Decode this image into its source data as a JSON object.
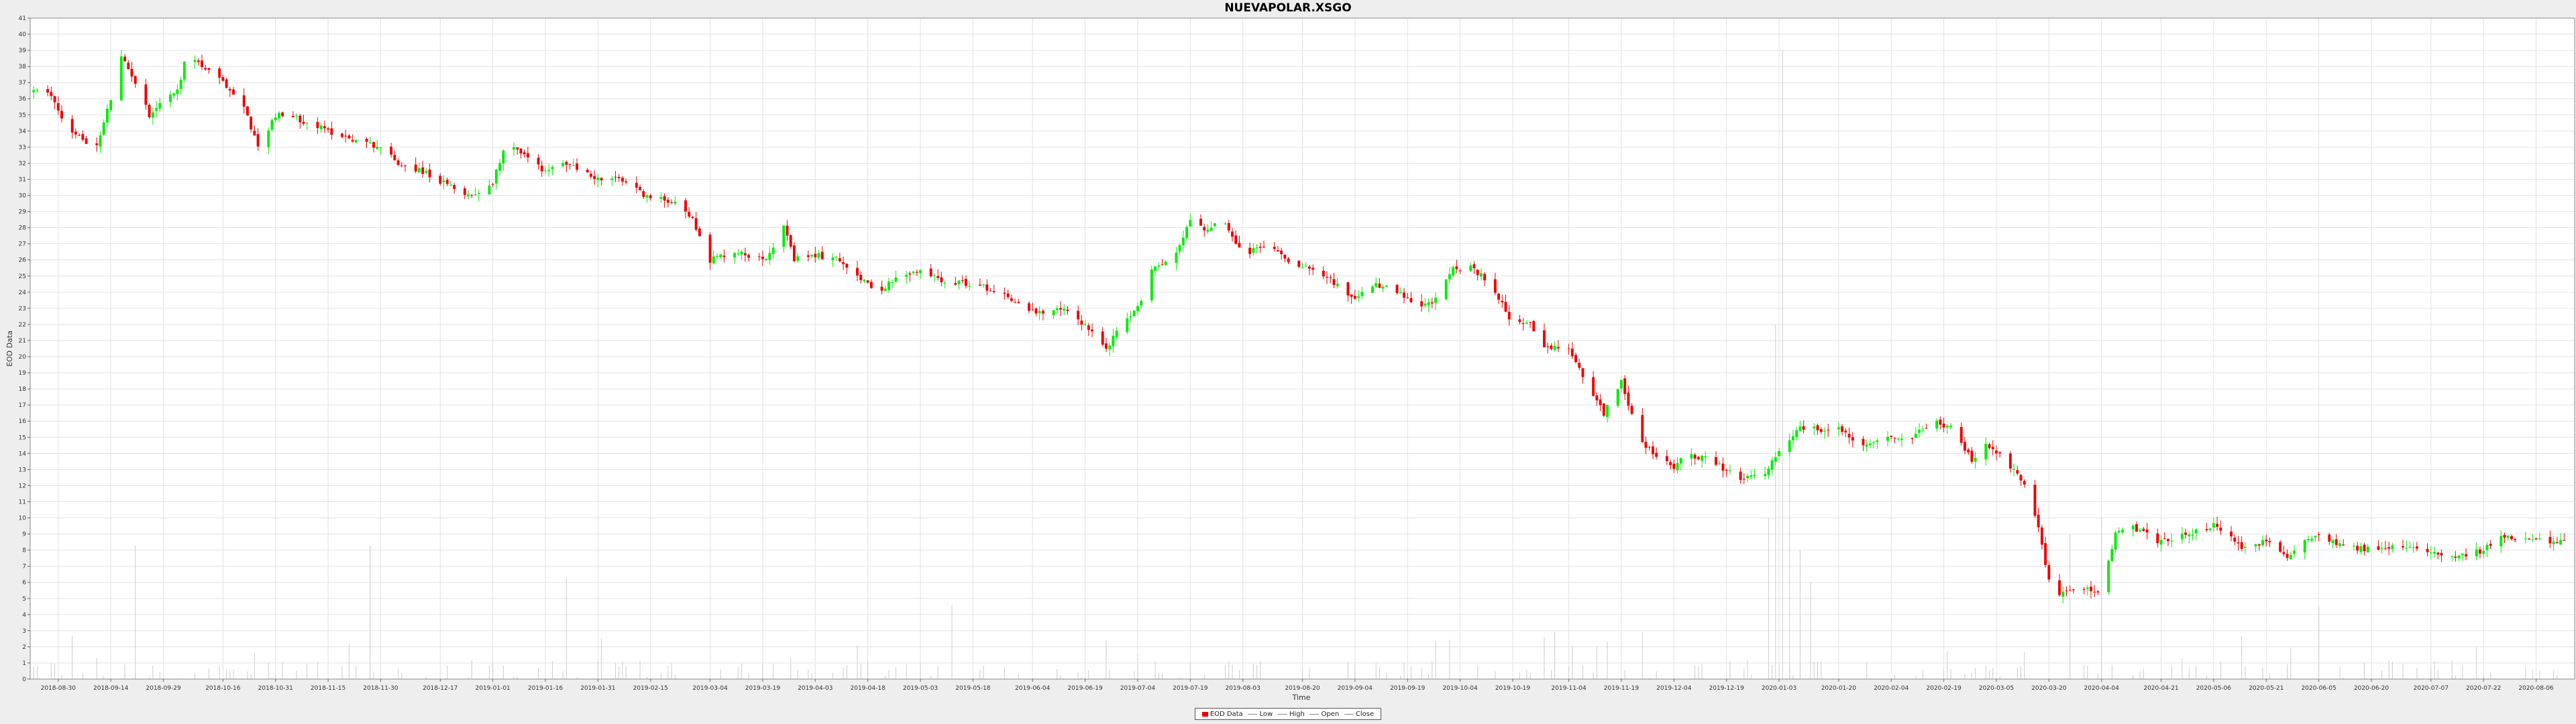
{
  "chart_data": {
    "type": "candlestick",
    "title": "NUEVAPOLAR.XSGO",
    "xlabel": "Time",
    "ylabel": "EOD Data",
    "ylim": [
      0,
      41
    ],
    "yticks": [
      0,
      1,
      2,
      3,
      4,
      5,
      6,
      7,
      8,
      9,
      10,
      11,
      12,
      13,
      14,
      15,
      16,
      17,
      18,
      19,
      20,
      21,
      22,
      23,
      24,
      25,
      26,
      27,
      28,
      29,
      30,
      31,
      32,
      33,
      34,
      35,
      36,
      37,
      38,
      39,
      40,
      41
    ],
    "xlim": [
      "2018-08-22",
      "2020-08-17"
    ],
    "xticks": [
      "2018-08-30",
      "2018-09-14",
      "2018-09-29",
      "2018-10-16",
      "2018-10-31",
      "2018-11-15",
      "2018-11-30",
      "2018-12-17",
      "2019-01-01",
      "2019-01-16",
      "2019-01-31",
      "2019-02-15",
      "2019-03-04",
      "2019-03-19",
      "2019-04-03",
      "2019-04-18",
      "2019-05-03",
      "2019-05-18",
      "2019-06-04",
      "2019-06-19",
      "2019-07-04",
      "2019-07-19",
      "2019-08-03",
      "2019-08-20",
      "2019-09-04",
      "2019-09-19",
      "2019-10-04",
      "2019-10-19",
      "2019-11-04",
      "2019-11-19",
      "2019-12-04",
      "2019-12-19",
      "2020-01-03",
      "2020-01-20",
      "2020-02-04",
      "2020-02-19",
      "2020-03-05",
      "2020-03-20",
      "2020-04-04",
      "2020-04-21",
      "2020-05-06",
      "2020-05-21",
      "2020-06-05",
      "2020-06-20",
      "2020-07-07",
      "2020-07-22",
      "2020-08-06"
    ],
    "close_path": [
      [
        "2018-08-23",
        36.5
      ],
      [
        "2018-08-28",
        36.2
      ],
      [
        "2018-09-02",
        34.0
      ],
      [
        "2018-09-06",
        33.5
      ],
      [
        "2018-09-10",
        33.0
      ],
      [
        "2018-09-14",
        36.0
      ],
      [
        "2018-09-17",
        38.5
      ],
      [
        "2018-09-20",
        37.5
      ],
      [
        "2018-09-25",
        35.0
      ],
      [
        "2018-09-29",
        36.0
      ],
      [
        "2018-10-03",
        36.5
      ],
      [
        "2018-10-06",
        39.0
      ],
      [
        "2018-10-10",
        38.0
      ],
      [
        "2018-10-16",
        37.0
      ],
      [
        "2018-10-22",
        35.5
      ],
      [
        "2018-10-26",
        33.0
      ],
      [
        "2018-10-31",
        35.0
      ],
      [
        "2018-11-06",
        34.8
      ],
      [
        "2018-11-15",
        34.0
      ],
      [
        "2018-11-22",
        33.5
      ],
      [
        "2018-11-30",
        33.0
      ],
      [
        "2018-12-05",
        32.0
      ],
      [
        "2018-12-12",
        31.5
      ],
      [
        "2018-12-20",
        30.5
      ],
      [
        "2018-12-26",
        30.0
      ],
      [
        "2019-01-01",
        30.8
      ],
      [
        "2019-01-05",
        33.5
      ],
      [
        "2019-01-10",
        32.5
      ],
      [
        "2019-01-16",
        31.5
      ],
      [
        "2019-01-22",
        32.0
      ],
      [
        "2019-01-31",
        31.0
      ],
      [
        "2019-02-06",
        31.0
      ],
      [
        "2019-02-10",
        30.5
      ],
      [
        "2019-02-15",
        29.8
      ],
      [
        "2019-02-22",
        29.7
      ],
      [
        "2019-02-27",
        28.5
      ],
      [
        "2019-03-04",
        26.0
      ],
      [
        "2019-03-10",
        26.5
      ],
      [
        "2019-03-15",
        26.3
      ],
      [
        "2019-03-20",
        26.2
      ],
      [
        "2019-03-25",
        28.0
      ],
      [
        "2019-03-28",
        26.0
      ],
      [
        "2019-04-03",
        26.3
      ],
      [
        "2019-04-10",
        26.0
      ],
      [
        "2019-04-14",
        25.3
      ],
      [
        "2019-04-20",
        24.0
      ],
      [
        "2019-04-26",
        24.8
      ],
      [
        "2019-05-03",
        25.3
      ],
      [
        "2019-05-10",
        24.7
      ],
      [
        "2019-05-18",
        24.5
      ],
      [
        "2019-05-26",
        24.0
      ],
      [
        "2019-06-02",
        23.0
      ],
      [
        "2019-06-08",
        22.5
      ],
      [
        "2019-06-12",
        23.0
      ],
      [
        "2019-06-19",
        22.0
      ],
      [
        "2019-06-25",
        20.5
      ],
      [
        "2019-06-28",
        21.5
      ],
      [
        "2019-07-04",
        23.0
      ],
      [
        "2019-07-08",
        25.5
      ],
      [
        "2019-07-14",
        26.0
      ],
      [
        "2019-07-19",
        28.5
      ],
      [
        "2019-07-24",
        27.8
      ],
      [
        "2019-07-28",
        28.5
      ],
      [
        "2019-08-03",
        26.3
      ],
      [
        "2019-08-10",
        27.0
      ],
      [
        "2019-08-17",
        25.8
      ],
      [
        "2019-08-24",
        25.5
      ],
      [
        "2019-09-04",
        23.5
      ],
      [
        "2019-09-10",
        24.5
      ],
      [
        "2019-09-16",
        24.0
      ],
      [
        "2019-09-22",
        23.0
      ],
      [
        "2019-09-27",
        23.5
      ],
      [
        "2019-10-02",
        25.5
      ],
      [
        "2019-10-07",
        25.5
      ],
      [
        "2019-10-13",
        24.5
      ],
      [
        "2019-10-19",
        22.0
      ],
      [
        "2019-10-24",
        22.0
      ],
      [
        "2019-10-28",
        20.5
      ],
      [
        "2019-11-04",
        20.5
      ],
      [
        "2019-11-09",
        18.5
      ],
      [
        "2019-11-14",
        16.5
      ],
      [
        "2019-11-19",
        18.5
      ],
      [
        "2019-11-24",
        15.0
      ],
      [
        "2019-11-30",
        13.5
      ],
      [
        "2019-12-04",
        13.2
      ],
      [
        "2019-12-08",
        14.0
      ],
      [
        "2019-12-15",
        13.5
      ],
      [
        "2019-12-22",
        12.5
      ],
      [
        "2019-12-29",
        12.5
      ],
      [
        "2020-01-03",
        14.0
      ],
      [
        "2020-01-08",
        15.5
      ],
      [
        "2020-01-14",
        15.5
      ],
      [
        "2020-01-20",
        15.5
      ],
      [
        "2020-01-26",
        14.5
      ],
      [
        "2020-02-01",
        15.0
      ],
      [
        "2020-02-10",
        15.0
      ],
      [
        "2020-02-16",
        16.0
      ],
      [
        "2020-02-22",
        15.5
      ],
      [
        "2020-02-27",
        13.5
      ],
      [
        "2020-03-02",
        14.5
      ],
      [
        "2020-03-08",
        13.5
      ],
      [
        "2020-03-13",
        12.0
      ],
      [
        "2020-03-17",
        9.5
      ],
      [
        "2020-03-21",
        5.0
      ],
      [
        "2020-03-26",
        5.5
      ],
      [
        "2020-04-01",
        5.6
      ],
      [
        "2020-04-04",
        5.5
      ],
      [
        "2020-04-08",
        9.0
      ],
      [
        "2020-04-12",
        9.5
      ],
      [
        "2020-04-21",
        8.5
      ],
      [
        "2020-04-28",
        9.0
      ],
      [
        "2020-05-06",
        9.5
      ],
      [
        "2020-05-14",
        8.2
      ],
      [
        "2020-05-21",
        8.5
      ],
      [
        "2020-05-27",
        7.5
      ],
      [
        "2020-06-02",
        8.8
      ],
      [
        "2020-06-05",
        9.0
      ],
      [
        "2020-06-12",
        8.3
      ],
      [
        "2020-06-20",
        8.0
      ],
      [
        "2020-06-28",
        8.2
      ],
      [
        "2020-07-07",
        8.0
      ],
      [
        "2020-07-14",
        7.6
      ],
      [
        "2020-07-22",
        8.0
      ],
      [
        "2020-07-27",
        8.8
      ],
      [
        "2020-08-01",
        8.7
      ],
      [
        "2020-08-06",
        8.6
      ],
      [
        "2020-08-14",
        8.5
      ]
    ],
    "volume_peaks": [
      [
        "2018-09-21",
        8.3
      ],
      [
        "2018-11-27",
        8.3
      ],
      [
        "2019-01-22",
        6.3
      ],
      [
        "2019-05-12",
        4.6
      ],
      [
        "2019-12-31",
        10.0
      ],
      [
        "2020-01-02",
        22.0
      ],
      [
        "2020-01-04",
        39.0
      ],
      [
        "2020-01-06",
        14.0
      ],
      [
        "2020-01-09",
        8.0
      ],
      [
        "2020-01-12",
        6.0
      ],
      [
        "2020-03-26",
        9.0
      ],
      [
        "2020-04-04",
        10.0
      ],
      [
        "2020-06-05",
        4.5
      ]
    ],
    "colors": {
      "up": "#00ee00",
      "down": "#ee0000",
      "grid": "#e2e2e2",
      "volume": "#cccccc",
      "plot_background": "#ffffff",
      "frame": "#888888"
    },
    "grid": true,
    "legend_position": "bottom-center",
    "legend": [
      {
        "label": "EOD Data",
        "kind": "swatch",
        "color": "#ee0000"
      },
      {
        "label": "Low",
        "kind": "line"
      },
      {
        "label": "High",
        "kind": "line"
      },
      {
        "label": "Open",
        "kind": "line"
      },
      {
        "label": "Close",
        "kind": "line"
      }
    ]
  }
}
